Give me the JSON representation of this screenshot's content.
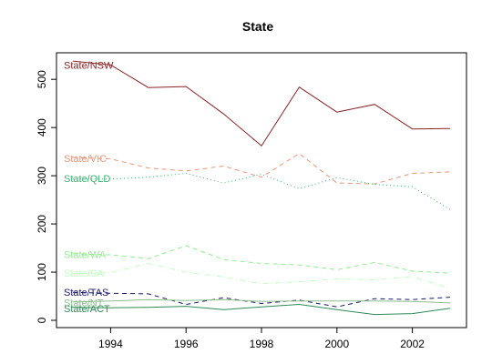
{
  "chart_data": {
    "type": "line",
    "title": "State",
    "xlabel": "",
    "ylabel": "",
    "xlim": [
      1993,
      2003
    ],
    "ylim": [
      0,
      540
    ],
    "x": [
      1993,
      1994,
      1995,
      1996,
      1997,
      1998,
      1999,
      2000,
      2001,
      2002,
      2003
    ],
    "xticks": [
      1994,
      1996,
      1998,
      2000,
      2002
    ],
    "yticks": [
      0,
      100,
      200,
      300,
      400,
      500
    ],
    "grid": false,
    "legend": "none",
    "series": [
      {
        "name": "State/NSW",
        "color": "#8B2323",
        "dash": "solid",
        "label_y": 530,
        "values": [
          538,
          530,
          483,
          485,
          428,
          362,
          484,
          432,
          448,
          397,
          398
        ]
      },
      {
        "name": "State/VIC",
        "color": "#E9967A",
        "dash": "dashed",
        "label_y": 336,
        "values": [
          338,
          335,
          316,
          310,
          320,
          297,
          346,
          285,
          283,
          305,
          308
        ]
      },
      {
        "name": "State/QLD",
        "color": "#3CB371",
        "dash": "dotted",
        "label_y": 295,
        "values": [
          293,
          293,
          297,
          305,
          285,
          303,
          273,
          296,
          282,
          277,
          230
        ]
      },
      {
        "name": "State/WA",
        "color": "#90EE90",
        "dash": "dashed",
        "label_y": 137,
        "values": [
          138,
          136,
          128,
          155,
          126,
          118,
          115,
          105,
          120,
          102,
          98
        ]
      },
      {
        "name": "State/SA",
        "color": "#C1FFC1",
        "dash": "dotdash",
        "label_y": 98,
        "values": [
          97,
          99,
          118,
          100,
          90,
          76,
          80,
          86,
          84,
          91,
          66
        ]
      },
      {
        "name": "State/TAS",
        "color": "#191970",
        "dash": "dashed",
        "label_y": 59,
        "values": [
          58,
          56,
          55,
          33,
          47,
          35,
          42,
          28,
          45,
          43,
          48
        ]
      },
      {
        "name": "State/NT",
        "color": "#8FBC8F",
        "dash": "solid",
        "label_y": 37,
        "values": [
          38,
          40,
          43,
          41,
          43,
          39,
          40,
          40,
          40,
          39,
          36
        ]
      },
      {
        "name": "State/ACT",
        "color": "#2E8B57",
        "dash": "solid",
        "label_y": 25,
        "values": [
          27,
          26,
          27,
          29,
          22,
          28,
          33,
          22,
          12,
          14,
          25
        ]
      }
    ]
  }
}
